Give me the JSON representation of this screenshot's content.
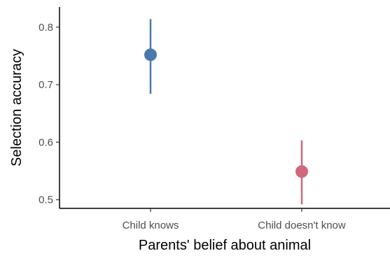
{
  "chart_data": {
    "type": "scatter",
    "title": "",
    "xlabel": "Parents' belief about animal",
    "ylabel": "Selection accuracy",
    "categories": [
      "Child knows",
      "Child doesn't know"
    ],
    "values": [
      0.752,
      0.549
    ],
    "error_lower": [
      0.684,
      0.492
    ],
    "error_upper": [
      0.814,
      0.603
    ],
    "colors": [
      "#4a7aad",
      "#d0677b"
    ],
    "ylim": [
      0.485,
      0.835
    ],
    "yticks": [
      0.5,
      0.6,
      0.7,
      0.8
    ],
    "ytick_labels": [
      "0.5",
      "0.6",
      "0.7",
      "0.8"
    ],
    "grid": false,
    "legend": "none"
  }
}
